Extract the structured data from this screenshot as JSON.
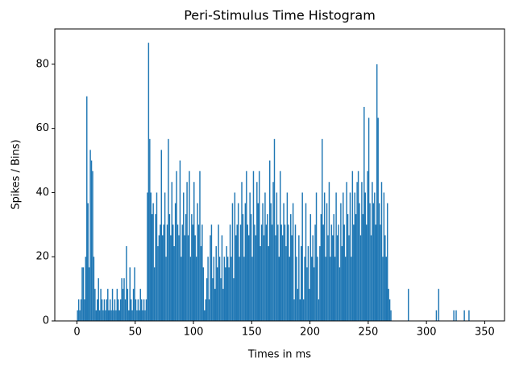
{
  "chart_data": {
    "type": "histogram",
    "title": "Peri-Stimulus Time Histogram",
    "x_label": "Times in ms",
    "y_label": "Spikes / Bins)",
    "color": "#1f77b4",
    "bins": [
      0,
      1,
      2,
      3,
      4,
      5,
      6,
      7,
      8,
      9,
      10,
      11,
      12,
      13,
      14,
      15,
      16,
      17,
      18,
      19,
      20,
      21,
      22,
      23,
      24,
      25,
      26,
      27,
      28,
      29,
      30,
      31,
      32,
      33,
      34,
      35,
      36,
      37,
      38,
      39,
      40,
      41,
      42,
      43,
      44,
      45,
      46,
      47,
      48,
      49,
      50,
      51,
      52,
      53,
      54,
      55,
      56,
      57,
      58,
      59,
      60,
      61,
      62,
      63,
      64,
      65,
      66,
      67,
      68,
      69,
      70,
      71,
      72,
      73,
      74,
      75,
      76,
      77,
      78,
      79,
      80,
      81,
      82,
      83,
      84,
      85,
      86,
      87,
      88,
      89,
      90,
      91,
      92,
      93,
      94,
      95,
      96,
      97,
      98,
      99,
      100,
      101,
      102,
      103,
      104,
      105,
      106,
      107,
      108,
      109,
      110,
      111,
      112,
      113,
      114,
      115,
      116,
      117,
      118,
      119,
      120,
      121,
      122,
      123,
      124,
      125,
      126,
      127,
      128,
      129,
      130,
      131,
      132,
      133,
      134,
      135,
      136,
      137,
      138,
      139,
      140,
      141,
      142,
      143,
      144,
      145,
      146,
      147,
      148,
      149,
      150,
      151,
      152,
      153,
      154,
      155,
      156,
      157,
      158,
      159,
      160,
      161,
      162,
      163,
      164,
      165,
      166,
      167,
      168,
      169,
      170,
      171,
      172,
      173,
      174,
      175,
      176,
      177,
      178,
      179,
      180,
      181,
      182,
      183,
      184,
      185,
      186,
      187,
      188,
      189,
      190,
      191,
      192,
      193,
      194,
      195,
      196,
      197,
      198,
      199,
      200,
      201,
      202,
      203,
      204,
      205,
      206,
      207,
      208,
      209,
      210,
      211,
      212,
      213,
      214,
      215,
      216,
      217,
      218,
      219,
      220,
      221,
      222,
      223,
      224,
      225,
      226,
      227,
      228,
      229,
      230,
      231,
      232,
      233,
      234,
      235,
      236,
      237,
      238,
      239,
      240,
      241,
      242,
      243,
      244,
      245,
      246,
      247,
      248,
      249,
      250,
      251,
      252,
      253,
      254,
      255,
      256,
      257,
      258,
      259,
      260,
      261,
      262,
      263,
      264,
      265,
      266,
      267,
      268,
      269,
      270,
      271,
      272,
      273,
      274,
      275,
      276,
      277,
      278,
      279,
      280,
      281,
      282,
      283,
      284,
      285,
      286,
      287,
      288,
      289,
      290,
      291,
      292,
      293,
      294,
      295,
      296,
      297,
      298,
      299,
      300,
      301,
      302,
      303,
      304,
      305,
      306,
      307,
      308,
      309,
      310,
      311,
      312,
      313,
      314,
      315,
      316,
      317,
      318,
      319,
      320,
      321,
      322,
      323,
      324,
      325,
      326,
      327,
      328,
      329,
      330,
      331,
      332,
      333,
      334,
      335,
      336,
      337
    ],
    "values": [
      3.3,
      6.7,
      3.3,
      6.7,
      16.7,
      16.7,
      6.7,
      20,
      70,
      36.7,
      16.7,
      53.3,
      50,
      46.7,
      20,
      10,
      3.3,
      6.7,
      13.3,
      3.3,
      10,
      6.7,
      3.3,
      6.7,
      3.3,
      6.7,
      10,
      3.3,
      6.7,
      3.3,
      10,
      3.3,
      6.7,
      3.3,
      10,
      6.7,
      3.3,
      6.7,
      13.3,
      10,
      13.3,
      6.7,
      23.3,
      10,
      3.3,
      16.7,
      6.7,
      3.3,
      10,
      16.7,
      6.7,
      3.3,
      6.7,
      3.3,
      10,
      6.7,
      3.3,
      6.7,
      3.3,
      6.7,
      40,
      86.7,
      56.7,
      40,
      33.3,
      36.7,
      16.7,
      33.3,
      40,
      23.3,
      26.7,
      30,
      53.3,
      26.7,
      30,
      40,
      20,
      30,
      56.7,
      33.3,
      26.7,
      43.3,
      30,
      23.3,
      36.7,
      46.7,
      30,
      26.7,
      50,
      20,
      30,
      40,
      26.7,
      33.3,
      43.3,
      26.7,
      46.7,
      20,
      33.3,
      30,
      43.3,
      26.7,
      20,
      36.7,
      30,
      46.7,
      23.3,
      30,
      16.7,
      3.3,
      6.7,
      13.3,
      20,
      6.7,
      26.7,
      30,
      13.3,
      20,
      10,
      23.3,
      16.7,
      30,
      20,
      13.3,
      26.7,
      10,
      20,
      16.7,
      23.3,
      20,
      16.7,
      30,
      20,
      36.7,
      13.3,
      40,
      26.7,
      30,
      36.7,
      20,
      30,
      43.3,
      33.3,
      20,
      36.7,
      46.7,
      30,
      26.7,
      40,
      33.3,
      20,
      46.7,
      30,
      26.7,
      43.3,
      36.7,
      46.7,
      23.3,
      30,
      36.7,
      26.7,
      40,
      30,
      33.3,
      23.3,
      50,
      36.7,
      30,
      43.3,
      56.7,
      26.7,
      40,
      30,
      20,
      46.7,
      30,
      26.7,
      36.7,
      30,
      23.3,
      40,
      30,
      20,
      33.3,
      26.7,
      36.7,
      6.7,
      30,
      20,
      10,
      26.7,
      6.7,
      23.3,
      40,
      6.7,
      20,
      36.7,
      16.7,
      23.3,
      10,
      33.3,
      20,
      26.7,
      16.7,
      30,
      40,
      20,
      6.7,
      23.3,
      33.3,
      56.7,
      30,
      40,
      20,
      36.7,
      26.7,
      43.3,
      20,
      30,
      26.7,
      33.3,
      20,
      40,
      26.7,
      30,
      16.7,
      36.7,
      23.3,
      40,
      30,
      20,
      43.3,
      33.3,
      26.7,
      40,
      20,
      46.7,
      30,
      40,
      33.3,
      43.3,
      46.7,
      36.7,
      26.7,
      43.3,
      33.3,
      66.7,
      40,
      30,
      46.7,
      63.3,
      36.7,
      26.7,
      43.3,
      36.7,
      40,
      30,
      80,
      63.3,
      36.7,
      30,
      43.3,
      20,
      40,
      26.7,
      20,
      36.7,
      10,
      6.7,
      3.3,
      0,
      0,
      0,
      0,
      0,
      0,
      0,
      0,
      0,
      0,
      0,
      0,
      0,
      0,
      10,
      0,
      0,
      0,
      0,
      0,
      0,
      0,
      0,
      0,
      0,
      0,
      0,
      0,
      0,
      0,
      0,
      0,
      0,
      0,
      0,
      0,
      0,
      0,
      3.3,
      0,
      10,
      0,
      0,
      0,
      0,
      0,
      0,
      0,
      0,
      0,
      0,
      0,
      0,
      3.3,
      0,
      3.3,
      0,
      0,
      0,
      0,
      0,
      0,
      3.3,
      0,
      0,
      0,
      3.3
    ],
    "xlim": [
      -19,
      367
    ],
    "ylim": [
      0,
      91
    ],
    "xticks": [
      0,
      50,
      100,
      150,
      200,
      250,
      300,
      350
    ],
    "yticks": [
      0,
      20,
      40,
      60,
      80
    ]
  }
}
